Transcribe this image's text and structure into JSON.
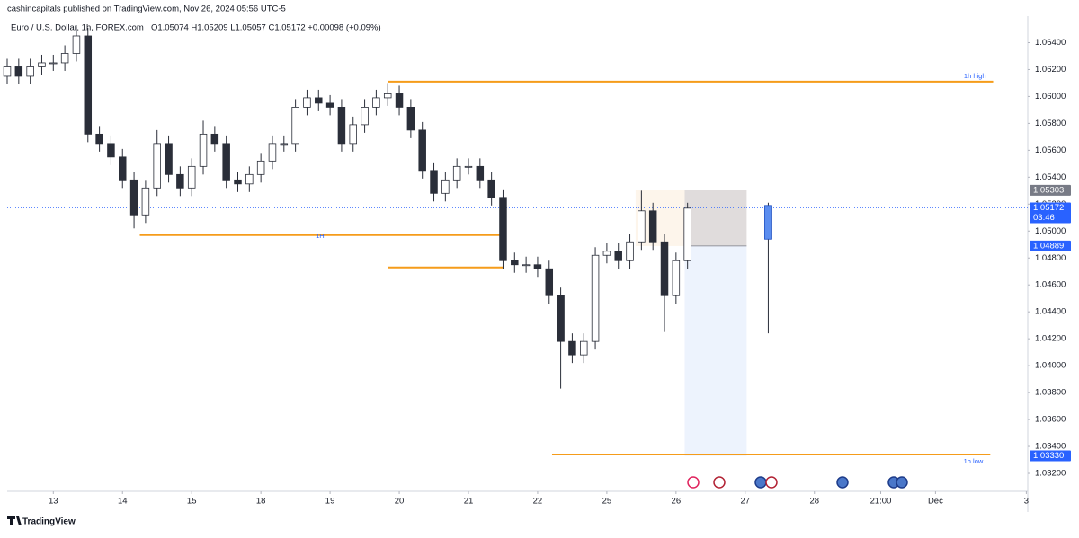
{
  "header": {
    "published": "cashincapitals published on TradingView.com, Nov 26, 2024 05:56 UTC-5",
    "symbol": "Euro / U.S. Dollar, 1h, FOREX.com",
    "ohlc": "O1.05074 H1.05209 L1.05057 C1.05172 +0.00098 (+0.09%)"
  },
  "footer": {
    "brand": "TradingView"
  },
  "chart_data": {
    "type": "candlestick",
    "xlim": [
      -16,
      338
    ],
    "ylim": [
      1.0308,
      1.0657
    ],
    "xticks": [
      {
        "value": 0,
        "label": "13"
      },
      {
        "value": 24,
        "label": "14"
      },
      {
        "value": 48,
        "label": "15"
      },
      {
        "value": 72,
        "label": "18"
      },
      {
        "value": 96,
        "label": "19"
      },
      {
        "value": 120,
        "label": "20"
      },
      {
        "value": 144,
        "label": "21"
      },
      {
        "value": 168,
        "label": "22"
      },
      {
        "value": 192,
        "label": "25"
      },
      {
        "value": 216,
        "label": "26"
      },
      {
        "value": 240,
        "label": "27"
      },
      {
        "value": 264,
        "label": "28"
      },
      {
        "value": 287,
        "label": "21:00"
      },
      {
        "value": 306,
        "label": "Dec"
      },
      {
        "value": 337.5,
        "label": "3"
      }
    ],
    "yticks": [
      {
        "value": 1.032,
        "label": "1.03200"
      },
      {
        "value": 1.034,
        "label": "1.03400"
      },
      {
        "value": 1.036,
        "label": "1.03600"
      },
      {
        "value": 1.038,
        "label": "1.03800"
      },
      {
        "value": 1.04,
        "label": "1.04000"
      },
      {
        "value": 1.042,
        "label": "1.04200"
      },
      {
        "value": 1.044,
        "label": "1.04400"
      },
      {
        "value": 1.046,
        "label": "1.04600"
      },
      {
        "value": 1.048,
        "label": "1.04800"
      },
      {
        "value": 1.05,
        "label": "1.05000"
      },
      {
        "value": 1.052,
        "label": "1.05200"
      },
      {
        "value": 1.054,
        "label": "1.05400"
      },
      {
        "value": 1.056,
        "label": "1.05600"
      },
      {
        "value": 1.058,
        "label": "1.05800"
      },
      {
        "value": 1.06,
        "label": "1.06000"
      },
      {
        "value": 1.062,
        "label": "1.06200"
      },
      {
        "value": 1.064,
        "label": "1.06400"
      }
    ],
    "grid": false,
    "up_color": "#ffffff",
    "down_color": "#2a2e39",
    "candles": {
      "x": [
        -16,
        -12,
        -8,
        -4,
        0,
        4,
        8,
        12,
        16,
        20,
        24,
        28,
        32,
        36,
        40,
        44,
        48,
        52,
        56,
        60,
        64,
        68,
        72,
        76,
        80,
        84,
        88,
        92,
        96,
        100,
        104,
        108,
        112,
        116,
        120,
        124,
        128,
        132,
        136,
        140,
        144,
        148,
        152,
        156,
        160,
        164,
        168,
        172,
        176,
        180,
        184,
        188,
        192,
        196,
        200,
        204,
        208,
        212,
        216,
        220
      ],
      "open": [
        1.0615,
        1.0622,
        1.0615,
        1.0622,
        1.0625,
        1.0625,
        1.0632,
        1.0645,
        1.0572,
        1.0565,
        1.0555,
        1.0538,
        1.0512,
        1.0532,
        1.0565,
        1.0542,
        1.0532,
        1.0548,
        1.0572,
        1.0565,
        1.0538,
        1.0535,
        1.0542,
        1.0552,
        1.0565,
        1.0565,
        1.0592,
        1.0599,
        1.0595,
        1.0592,
        1.0565,
        1.0579,
        1.0592,
        1.0599,
        1.0602,
        1.0592,
        1.0575,
        1.0545,
        1.0528,
        1.0538,
        1.0548,
        1.0548,
        1.0538,
        1.0525,
        1.0478,
        1.0475,
        1.0475,
        1.0472,
        1.0452,
        1.0418,
        1.0408,
        1.0418,
        1.0482,
        1.0485,
        1.0478,
        1.0492,
        1.0515,
        1.0492,
        1.0452,
        1.0478
      ],
      "high": [
        1.0628,
        1.0628,
        1.0628,
        1.0631,
        1.0631,
        1.0638,
        1.0652,
        1.0651,
        1.0578,
        1.0571,
        1.0561,
        1.0544,
        1.0538,
        1.0575,
        1.0571,
        1.0548,
        1.0554,
        1.0582,
        1.0578,
        1.0571,
        1.0544,
        1.0548,
        1.0558,
        1.0571,
        1.0571,
        1.0598,
        1.0605,
        1.0605,
        1.0601,
        1.0598,
        1.0585,
        1.0598,
        1.0605,
        1.061,
        1.0608,
        1.0598,
        1.0581,
        1.0551,
        1.0544,
        1.0554,
        1.0554,
        1.0554,
        1.0544,
        1.0531,
        1.0484,
        1.0481,
        1.0481,
        1.0478,
        1.0458,
        1.0424,
        1.0424,
        1.0488,
        1.0491,
        1.0491,
        1.0498,
        1.053,
        1.0521,
        1.0498,
        1.0484,
        1.0521
      ],
      "low": [
        1.0609,
        1.0609,
        1.0609,
        1.0616,
        1.0619,
        1.0619,
        1.0626,
        1.0566,
        1.0559,
        1.0549,
        1.0532,
        1.0502,
        1.0506,
        1.0526,
        1.0536,
        1.0526,
        1.0526,
        1.0542,
        1.0559,
        1.0532,
        1.0529,
        1.0529,
        1.0536,
        1.0546,
        1.0559,
        1.0559,
        1.0586,
        1.0589,
        1.0586,
        1.0559,
        1.0559,
        1.0573,
        1.0586,
        1.0593,
        1.0586,
        1.0569,
        1.0539,
        1.0522,
        1.0522,
        1.0532,
        1.0542,
        1.0532,
        1.0519,
        1.0472,
        1.0469,
        1.0469,
        1.0466,
        1.0446,
        1.0383,
        1.0402,
        1.0402,
        1.0412,
        1.0476,
        1.0472,
        1.0472,
        1.0486,
        1.0486,
        1.0425,
        1.0446,
        1.0472
      ],
      "close": [
        1.0622,
        1.0615,
        1.0622,
        1.0625,
        1.0625,
        1.0632,
        1.0645,
        1.0572,
        1.0565,
        1.0555,
        1.0538,
        1.0512,
        1.0532,
        1.0565,
        1.0542,
        1.0532,
        1.0548,
        1.0572,
        1.0565,
        1.0538,
        1.0535,
        1.0542,
        1.0552,
        1.0565,
        1.0565,
        1.0592,
        1.0599,
        1.0595,
        1.0592,
        1.0565,
        1.0579,
        1.0592,
        1.0599,
        1.0602,
        1.0592,
        1.0575,
        1.0545,
        1.0528,
        1.0538,
        1.0548,
        1.0548,
        1.0538,
        1.0525,
        1.0478,
        1.0475,
        1.0475,
        1.0472,
        1.0452,
        1.0418,
        1.0408,
        1.0418,
        1.0482,
        1.0485,
        1.0478,
        1.0492,
        1.0515,
        1.0492,
        1.0452,
        1.0478,
        1.0517
      ]
    },
    "projection": {
      "x": 248,
      "open": 1.0494,
      "high": 1.0521,
      "low": 1.0424,
      "close": 1.0519,
      "color": "#5b8def"
    },
    "level_color": "#f59c1a",
    "label_color": "#2962ff",
    "levels": [
      {
        "label": "1h high",
        "value": 1.0611,
        "x": [
          116,
          326
        ]
      },
      {
        "label": "1H",
        "value": 1.0497,
        "x": [
          30,
          155
        ]
      },
      {
        "value": 1.0473,
        "x": [
          116,
          156
        ]
      },
      {
        "label": "1h low",
        "value": 1.0334,
        "x": [
          173,
          325
        ]
      }
    ],
    "position": {
      "x": [
        202,
        219,
        240.5
      ],
      "stop": 1.05303,
      "entry": 1.04889,
      "target": 1.0333
    },
    "last_price": 1.05172,
    "price_tags": [
      {
        "value": 1.05303,
        "label": "1.05303",
        "color": "#787b86"
      },
      {
        "value": 1.05172,
        "label": "1.05172",
        "countdown": "03:46",
        "color": "#2962ff"
      },
      {
        "value": 1.04889,
        "label": "1.04889",
        "color": "#2962ff"
      },
      {
        "value": 1.0333,
        "label": "1.03330",
        "color": "#2962ff"
      }
    ]
  }
}
